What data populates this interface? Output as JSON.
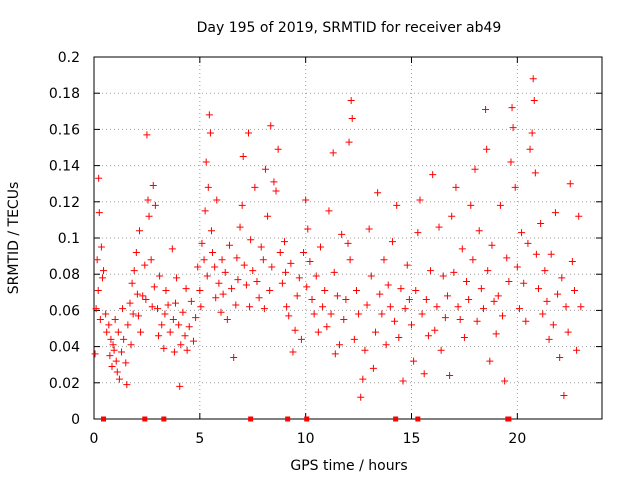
{
  "chart_data": {
    "type": "scatter",
    "title": "Day 195 of 2019, SRMTID for receiver ab49",
    "xlabel": "GPS time / hours",
    "ylabel": "SRMTID / TECUs",
    "xlim": [
      0,
      24
    ],
    "ylim": [
      0,
      0.2
    ],
    "xticks": [
      "0",
      "5",
      "10",
      "15",
      "20"
    ],
    "xtick_values": [
      0,
      5,
      10,
      15,
      20
    ],
    "yticks": [
      "0",
      "0.02",
      "0.04",
      "0.06",
      "0.08",
      "0.1",
      "0.12",
      "0.14",
      "0.16",
      "0.18",
      "0.2"
    ],
    "ytick_values": [
      0,
      0.02,
      0.04,
      0.06,
      0.08,
      0.1,
      0.12,
      0.14,
      0.16,
      0.18,
      0.2
    ],
    "grid": true,
    "marker": "+",
    "color": "#ff0000",
    "series": [
      {
        "name": "SRMTID",
        "points": [
          [
            0.05,
            0.036
          ],
          [
            0.1,
            0.061
          ],
          [
            0.15,
            0.088
          ],
          [
            0.2,
            0.071
          ],
          [
            0.22,
            0.133
          ],
          [
            0.25,
            0.114
          ],
          [
            0.3,
            0.055
          ],
          [
            0.35,
            0.095
          ],
          [
            0.4,
            0.078
          ],
          [
            0.45,
            0.082
          ],
          [
            0.55,
            0.058
          ],
          [
            0.6,
            0.048
          ],
          [
            0.7,
            0.052
          ],
          [
            0.75,
            0.035
          ],
          [
            0.8,
            0.044
          ],
          [
            0.85,
            0.029
          ],
          [
            0.9,
            0.041
          ],
          [
            0.95,
            0.038
          ],
          [
            1.0,
            0.055
          ],
          [
            1.05,
            0.032
          ],
          [
            1.1,
            0.026
          ],
          [
            1.15,
            0.048
          ],
          [
            1.2,
            0.022
          ],
          [
            1.3,
            0.037
          ],
          [
            1.35,
            0.061
          ],
          [
            1.4,
            0.044
          ],
          [
            1.5,
            0.031
          ],
          [
            1.55,
            0.019
          ],
          [
            1.6,
            0.052
          ],
          [
            1.7,
            0.064
          ],
          [
            1.75,
            0.041
          ],
          [
            1.8,
            0.075
          ],
          [
            1.85,
            0.058
          ],
          [
            1.9,
            0.082
          ],
          [
            2.0,
            0.092
          ],
          [
            2.05,
            0.069
          ],
          [
            2.1,
            0.057
          ],
          [
            2.15,
            0.104
          ],
          [
            2.2,
            0.048
          ],
          [
            2.3,
            0.068
          ],
          [
            2.4,
            0.085
          ],
          [
            2.45,
            0.066
          ],
          [
            2.5,
            0.157
          ],
          [
            2.55,
            0.121
          ],
          [
            2.6,
            0.112
          ],
          [
            2.7,
            0.088
          ],
          [
            2.75,
            0.062
          ],
          [
            2.8,
            0.129
          ],
          [
            2.85,
            0.073
          ],
          [
            2.9,
            0.118
          ],
          [
            3.0,
            0.061
          ],
          [
            3.05,
            0.046
          ],
          [
            3.1,
            0.079
          ],
          [
            3.2,
            0.052
          ],
          [
            3.3,
            0.039
          ],
          [
            3.35,
            0.058
          ],
          [
            3.4,
            0.071
          ],
          [
            3.5,
            0.063
          ],
          [
            3.6,
            0.048
          ],
          [
            3.7,
            0.094
          ],
          [
            3.75,
            0.055
          ],
          [
            3.8,
            0.037
          ],
          [
            3.85,
            0.064
          ],
          [
            3.9,
            0.078
          ],
          [
            4.0,
            0.052
          ],
          [
            4.05,
            0.018
          ],
          [
            4.1,
            0.041
          ],
          [
            4.2,
            0.059
          ],
          [
            4.3,
            0.046
          ],
          [
            4.35,
            0.072
          ],
          [
            4.4,
            0.038
          ],
          [
            4.5,
            0.051
          ],
          [
            4.6,
            0.065
          ],
          [
            4.7,
            0.043
          ],
          [
            4.8,
            0.056
          ],
          [
            4.9,
            0.084
          ],
          [
            5.0,
            0.071
          ],
          [
            5.05,
            0.062
          ],
          [
            5.1,
            0.097
          ],
          [
            5.2,
            0.088
          ],
          [
            5.25,
            0.115
          ],
          [
            5.3,
            0.142
          ],
          [
            5.35,
            0.079
          ],
          [
            5.4,
            0.128
          ],
          [
            5.45,
            0.168
          ],
          [
            5.5,
            0.158
          ],
          [
            5.55,
            0.104
          ],
          [
            5.6,
            0.092
          ],
          [
            5.7,
            0.084
          ],
          [
            5.75,
            0.067
          ],
          [
            5.8,
            0.121
          ],
          [
            5.9,
            0.075
          ],
          [
            6.0,
            0.059
          ],
          [
            6.05,
            0.088
          ],
          [
            6.1,
            0.069
          ],
          [
            6.2,
            0.081
          ],
          [
            6.3,
            0.055
          ],
          [
            6.4,
            0.096
          ],
          [
            6.5,
            0.072
          ],
          [
            6.6,
            0.034
          ],
          [
            6.7,
            0.063
          ],
          [
            6.75,
            0.089
          ],
          [
            6.8,
            0.077
          ],
          [
            6.9,
            0.106
          ],
          [
            7.0,
            0.118
          ],
          [
            7.05,
            0.145
          ],
          [
            7.1,
            0.085
          ],
          [
            7.2,
            0.074
          ],
          [
            7.3,
            0.158
          ],
          [
            7.35,
            0.062
          ],
          [
            7.4,
            0.099
          ],
          [
            7.5,
            0.082
          ],
          [
            7.6,
            0.128
          ],
          [
            7.7,
            0.076
          ],
          [
            7.8,
            0.067
          ],
          [
            7.9,
            0.095
          ],
          [
            8.0,
            0.088
          ],
          [
            8.05,
            0.061
          ],
          [
            8.1,
            0.138
          ],
          [
            8.2,
            0.112
          ],
          [
            8.3,
            0.071
          ],
          [
            8.35,
            0.162
          ],
          [
            8.4,
            0.084
          ],
          [
            8.5,
            0.131
          ],
          [
            8.6,
            0.126
          ],
          [
            8.7,
            0.149
          ],
          [
            8.8,
            0.092
          ],
          [
            8.9,
            0.075
          ],
          [
            9.0,
            0.098
          ],
          [
            9.05,
            0.081
          ],
          [
            9.1,
            0.062
          ],
          [
            9.2,
            0.057
          ],
          [
            9.3,
            0.086
          ],
          [
            9.4,
            0.037
          ],
          [
            9.5,
            0.049
          ],
          [
            9.6,
            0.068
          ],
          [
            9.7,
            0.078
          ],
          [
            9.8,
            0.044
          ],
          [
            9.9,
            0.092
          ],
          [
            10.0,
            0.121
          ],
          [
            10.05,
            0.073
          ],
          [
            10.1,
            0.105
          ],
          [
            10.2,
            0.087
          ],
          [
            10.3,
            0.066
          ],
          [
            10.4,
            0.058
          ],
          [
            10.5,
            0.079
          ],
          [
            10.6,
            0.048
          ],
          [
            10.7,
            0.095
          ],
          [
            10.8,
            0.062
          ],
          [
            10.9,
            0.071
          ],
          [
            11.0,
            0.051
          ],
          [
            11.1,
            0.115
          ],
          [
            11.2,
            0.058
          ],
          [
            11.3,
            0.147
          ],
          [
            11.35,
            0.081
          ],
          [
            11.4,
            0.036
          ],
          [
            11.5,
            0.068
          ],
          [
            11.6,
            0.041
          ],
          [
            11.7,
            0.102
          ],
          [
            11.8,
            0.055
          ],
          [
            11.9,
            0.066
          ],
          [
            12.0,
            0.097
          ],
          [
            12.05,
            0.153
          ],
          [
            12.1,
            0.088
          ],
          [
            12.15,
            0.176
          ],
          [
            12.2,
            0.166
          ],
          [
            12.3,
            0.044
          ],
          [
            12.4,
            0.071
          ],
          [
            12.5,
            0.058
          ],
          [
            12.6,
            0.012
          ],
          [
            12.7,
            0.022
          ],
          [
            12.8,
            0.038
          ],
          [
            12.9,
            0.063
          ],
          [
            13.0,
            0.105
          ],
          [
            13.1,
            0.079
          ],
          [
            13.2,
            0.028
          ],
          [
            13.3,
            0.048
          ],
          [
            13.4,
            0.125
          ],
          [
            13.5,
            0.069
          ],
          [
            13.6,
            0.058
          ],
          [
            13.7,
            0.088
          ],
          [
            13.8,
            0.041
          ],
          [
            13.9,
            0.074
          ],
          [
            14.0,
            0.062
          ],
          [
            14.1,
            0.098
          ],
          [
            14.2,
            0.054
          ],
          [
            14.3,
            0.118
          ],
          [
            14.4,
            0.045
          ],
          [
            14.5,
            0.072
          ],
          [
            14.6,
            0.021
          ],
          [
            14.7,
            0.061
          ],
          [
            14.8,
            0.085
          ],
          [
            14.9,
            0.066
          ],
          [
            15.0,
            0.052
          ],
          [
            15.1,
            0.032
          ],
          [
            15.2,
            0.071
          ],
          [
            15.3,
            0.103
          ],
          [
            15.4,
            0.121
          ],
          [
            15.5,
            0.058
          ],
          [
            15.6,
            0.025
          ],
          [
            15.7,
            0.066
          ],
          [
            15.8,
            0.046
          ],
          [
            15.9,
            0.082
          ],
          [
            16.0,
            0.135
          ],
          [
            16.1,
            0.049
          ],
          [
            16.2,
            0.062
          ],
          [
            16.3,
            0.106
          ],
          [
            16.4,
            0.038
          ],
          [
            16.5,
            0.079
          ],
          [
            16.6,
            0.056
          ],
          [
            16.7,
            0.068
          ],
          [
            16.8,
            0.024
          ],
          [
            16.9,
            0.112
          ],
          [
            17.0,
            0.081
          ],
          [
            17.1,
            0.128
          ],
          [
            17.2,
            0.062
          ],
          [
            17.3,
            0.055
          ],
          [
            17.4,
            0.094
          ],
          [
            17.5,
            0.045
          ],
          [
            17.6,
            0.076
          ],
          [
            17.7,
            0.066
          ],
          [
            17.8,
            0.118
          ],
          [
            17.9,
            0.088
          ],
          [
            18.0,
            0.138
          ],
          [
            18.1,
            0.054
          ],
          [
            18.2,
            0.104
          ],
          [
            18.3,
            0.072
          ],
          [
            18.4,
            0.061
          ],
          [
            18.5,
            0.171
          ],
          [
            18.55,
            0.149
          ],
          [
            18.6,
            0.082
          ],
          [
            18.7,
            0.032
          ],
          [
            18.8,
            0.096
          ],
          [
            18.9,
            0.065
          ],
          [
            19.0,
            0.047
          ],
          [
            19.1,
            0.068
          ],
          [
            19.2,
            0.118
          ],
          [
            19.3,
            0.057
          ],
          [
            19.4,
            0.021
          ],
          [
            19.5,
            0.089
          ],
          [
            19.6,
            0.076
          ],
          [
            19.7,
            0.142
          ],
          [
            19.75,
            0.172
          ],
          [
            19.8,
            0.161
          ],
          [
            19.9,
            0.128
          ],
          [
            20.0,
            0.084
          ],
          [
            20.1,
            0.061
          ],
          [
            20.2,
            0.103
          ],
          [
            20.3,
            0.075
          ],
          [
            20.4,
            0.054
          ],
          [
            20.5,
            0.097
          ],
          [
            20.6,
            0.149
          ],
          [
            20.7,
            0.158
          ],
          [
            20.75,
            0.188
          ],
          [
            20.8,
            0.176
          ],
          [
            20.85,
            0.136
          ],
          [
            20.9,
            0.091
          ],
          [
            21.0,
            0.072
          ],
          [
            21.1,
            0.108
          ],
          [
            21.2,
            0.058
          ],
          [
            21.3,
            0.082
          ],
          [
            21.4,
            0.065
          ],
          [
            21.5,
            0.044
          ],
          [
            21.6,
            0.091
          ],
          [
            21.7,
            0.052
          ],
          [
            21.8,
            0.114
          ],
          [
            21.9,
            0.069
          ],
          [
            22.0,
            0.034
          ],
          [
            22.1,
            0.078
          ],
          [
            22.2,
            0.013
          ],
          [
            22.3,
            0.062
          ],
          [
            22.4,
            0.048
          ],
          [
            22.5,
            0.13
          ],
          [
            22.6,
            0.087
          ],
          [
            22.7,
            0.071
          ],
          [
            22.8,
            0.038
          ],
          [
            22.9,
            0.112
          ],
          [
            23.0,
            0.062
          ]
        ]
      }
    ],
    "zero_points_x": [
      0.45,
      2.4,
      3.3,
      7.4,
      9.15,
      10.05,
      14.25,
      15.3,
      19.55,
      19.6
    ]
  }
}
